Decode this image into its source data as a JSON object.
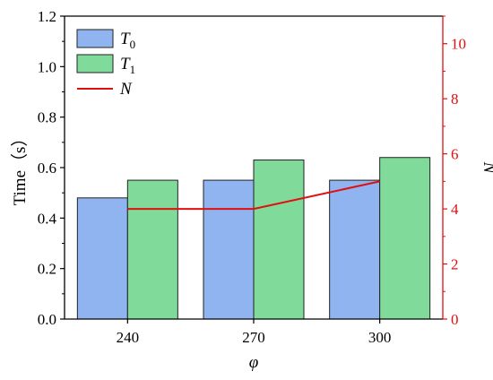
{
  "chart_data": {
    "type": "bar",
    "categories": [
      "240",
      "270",
      "300"
    ],
    "series": [
      {
        "name": "T",
        "subscript": "0",
        "type": "bar",
        "axis": "left",
        "color": "#8fb4f0",
        "values": [
          0.48,
          0.55,
          0.55
        ]
      },
      {
        "name": "T",
        "subscript": "1",
        "type": "bar",
        "axis": "left",
        "color": "#80da9a",
        "values": [
          0.55,
          0.63,
          0.64
        ]
      },
      {
        "name": "N",
        "subscript": "",
        "type": "line",
        "axis": "right",
        "color": "#e01010",
        "values": [
          4,
          4,
          5
        ]
      }
    ],
    "xlabel": "φ",
    "ylabel": "Time（s）",
    "y2label": "N",
    "ylim": [
      0,
      1.2
    ],
    "y2lim": [
      0,
      11
    ],
    "yticks": [
      "0.0",
      "0.2",
      "0.4",
      "0.6",
      "0.8",
      "1.0",
      "1.2"
    ],
    "y2ticks": [
      "0",
      "2",
      "4",
      "6",
      "8",
      "10"
    ],
    "right_axis_color": "#e01010",
    "legend_position": "top-left",
    "grid": false
  }
}
